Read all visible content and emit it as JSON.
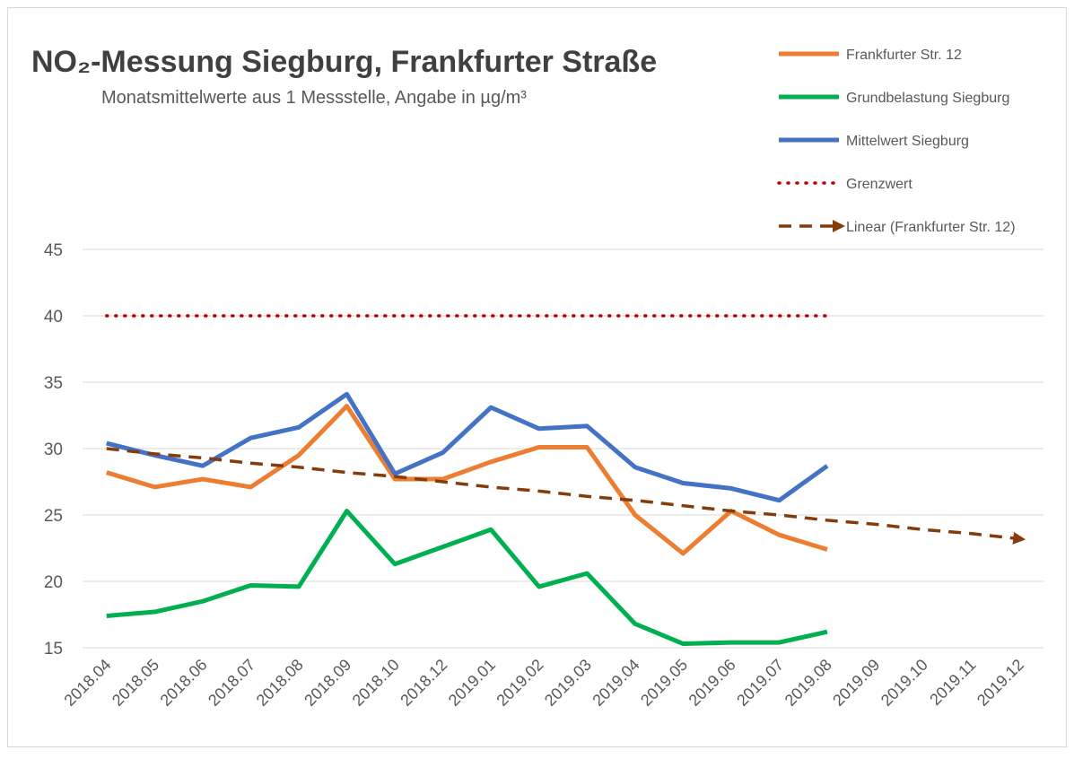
{
  "chart_data": {
    "type": "line",
    "title": "NO₂-Messung Siegburg, Frankfurter Straße",
    "subtitle": "Monatsmittelwerte aus 1 Messstelle, Angabe in µg/m³",
    "categories": [
      "2018.04",
      "2018.05",
      "2018.06",
      "2018.07",
      "2018.08",
      "2018.09",
      "2018.10",
      "2018.12",
      "2019.01",
      "2019.02",
      "2019.03",
      "2019.04",
      "2019.05",
      "2019.06",
      "2019.07",
      "2019.08",
      "2019.09",
      "2019.10",
      "2019.11",
      "2019.12"
    ],
    "series": [
      {
        "name": "Frankfurter Str. 12",
        "color": "#ed7d31",
        "dash": "solid",
        "values": [
          28.2,
          27.1,
          27.7,
          27.1,
          29.5,
          33.2,
          27.7,
          27.7,
          29.0,
          30.1,
          30.1,
          25.0,
          22.1,
          25.3,
          23.5,
          22.4,
          null,
          null,
          null,
          null
        ]
      },
      {
        "name": "Grundbelastung Siegburg",
        "color": "#00b050",
        "dash": "solid",
        "values": [
          17.4,
          17.7,
          18.5,
          19.7,
          19.6,
          25.3,
          21.3,
          22.6,
          23.9,
          19.6,
          20.6,
          16.8,
          15.3,
          15.4,
          15.4,
          16.2,
          null,
          null,
          null,
          null
        ]
      },
      {
        "name": "Mittelwert Siegburg",
        "color": "#4472c4",
        "dash": "solid",
        "values": [
          30.4,
          29.5,
          28.7,
          30.8,
          31.6,
          34.1,
          28.1,
          29.7,
          33.1,
          31.5,
          31.7,
          28.6,
          27.4,
          27.0,
          26.1,
          28.7,
          null,
          null,
          null,
          null
        ]
      },
      {
        "name": "Grenzwert",
        "color": "#c00000",
        "dash": "dotted",
        "values": [
          40,
          40,
          40,
          40,
          40,
          40,
          40,
          40,
          40,
          40,
          40,
          40,
          40,
          40,
          40,
          40,
          null,
          null,
          null,
          null
        ]
      },
      {
        "name": "Linear (Frankfurter Str. 12)",
        "color": "#843c0c",
        "dash": "dashed",
        "arrow": true,
        "values": [
          30.0,
          29.6,
          29.3,
          28.9,
          28.6,
          28.2,
          27.9,
          27.5,
          27.1,
          26.8,
          26.4,
          26.1,
          25.7,
          25.3,
          25.0,
          24.6,
          24.3,
          23.9,
          23.6,
          23.2
        ]
      }
    ],
    "ylim": [
      15,
      45
    ],
    "yticks": [
      15,
      20,
      25,
      30,
      35,
      40,
      45
    ],
    "grid": true,
    "legend": "top-right"
  }
}
